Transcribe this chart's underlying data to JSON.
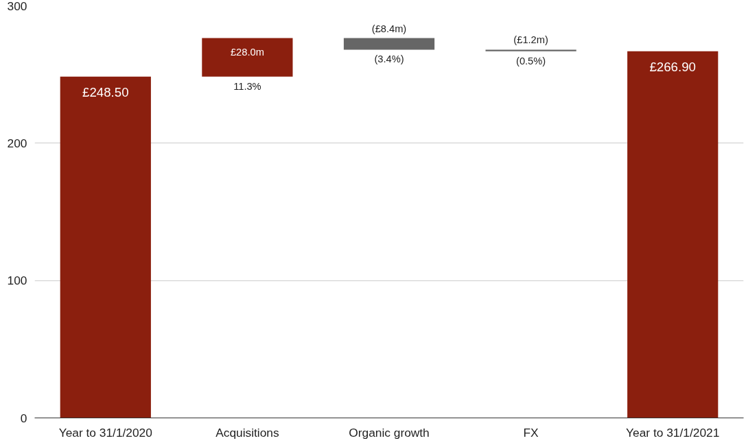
{
  "chart_data": {
    "type": "bar",
    "categories": [
      "Year to 31/1/2020",
      "Acquisitions",
      "Organic growth",
      "FX",
      "Year to 31/1/2021"
    ],
    "values": [
      248.5,
      28.0,
      -8.4,
      -1.2,
      266.9
    ],
    "base": [
      0,
      248.5,
      276.5,
      268.1,
      0
    ],
    "colors": [
      "#8b1f0e",
      "#8b1f0e",
      "#666666",
      "#666666",
      "#8b1f0e"
    ],
    "value_labels": [
      "£248.50",
      "£28.0m",
      "(£8.4m)",
      "(£1.2m)",
      "£266.90"
    ],
    "annotations": [
      {
        "text": "11.3%",
        "x": "Acquisitions",
        "y": 248.5
      },
      {
        "text": "(3.4%)",
        "x": "Organic growth",
        "y": 268.1
      },
      {
        "text": "(0.5%)",
        "x": "FX",
        "y": 266.9
      }
    ],
    "ylim": [
      0,
      300
    ],
    "yticks": [
      0,
      100,
      200,
      300
    ],
    "grid": "y"
  }
}
